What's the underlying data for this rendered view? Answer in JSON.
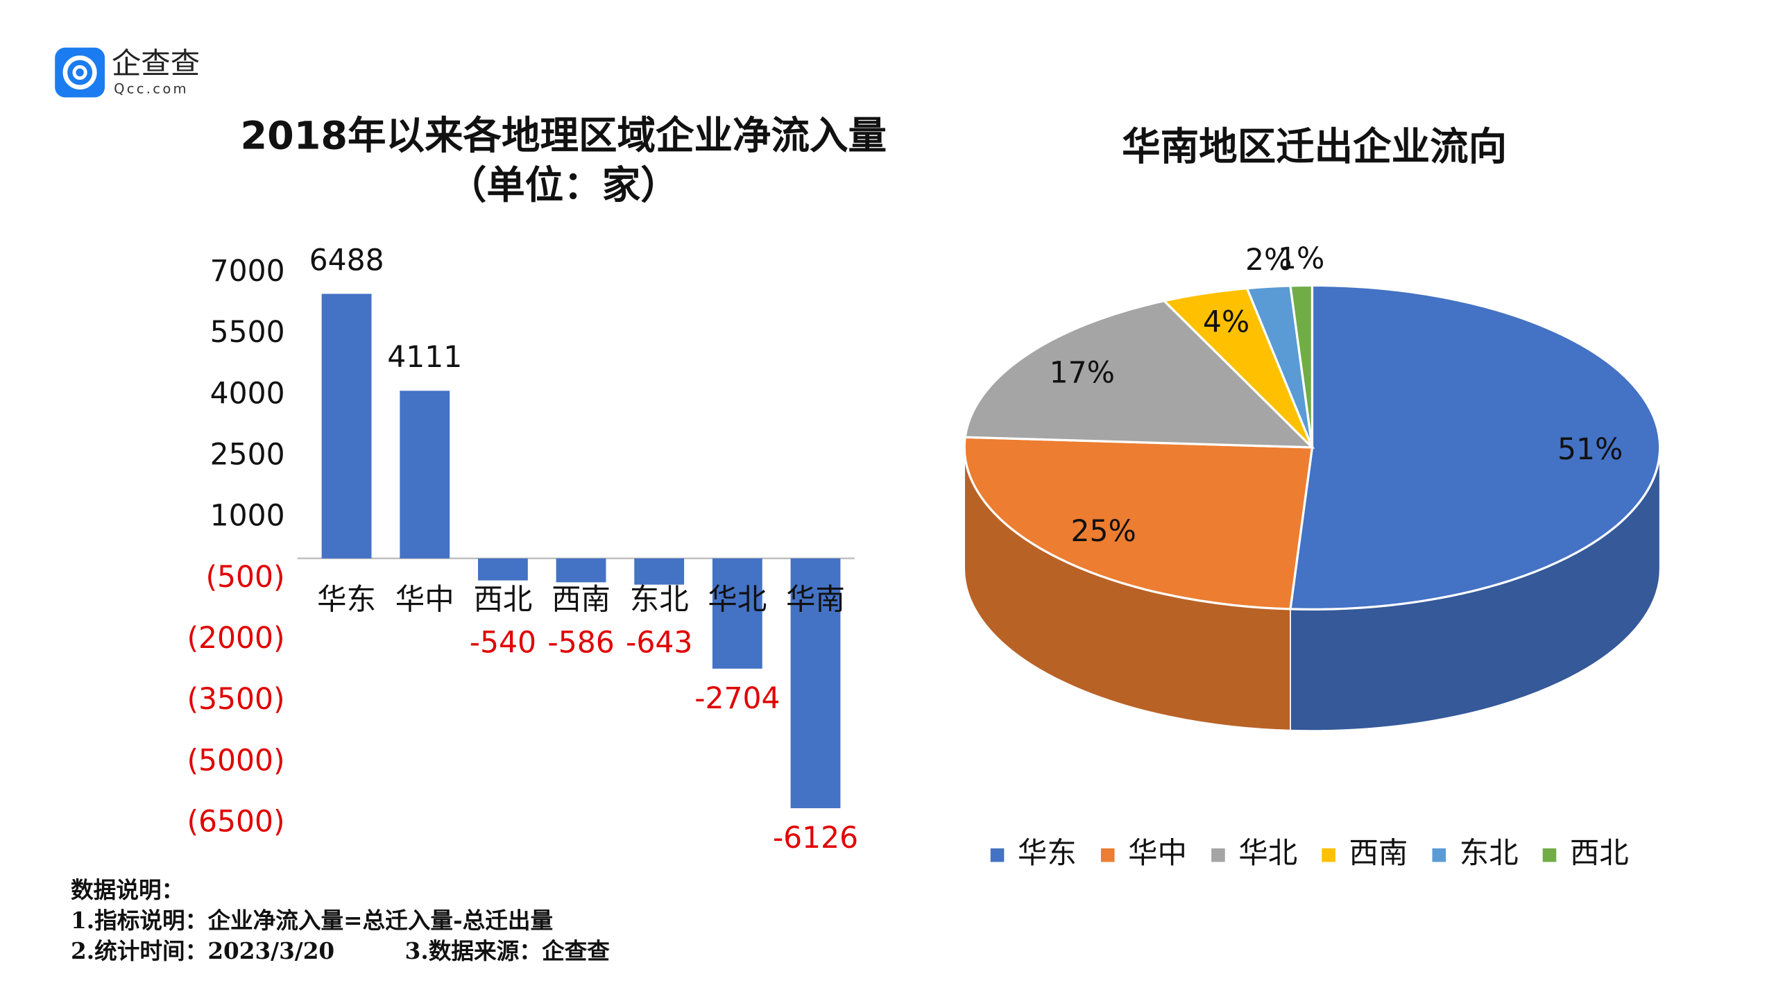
{
  "logo": {
    "name": "企查查",
    "domain": "Qcc.com"
  },
  "chart_data": [
    {
      "type": "bar",
      "title": "2018年以来各地理区域企业净流入量",
      "subtitle": "（单位：家）",
      "categories": [
        "华东",
        "华中",
        "西北",
        "西南",
        "东北",
        "华北",
        "华南"
      ],
      "values": [
        6488,
        4111,
        -540,
        -586,
        -643,
        -2704,
        -6126
      ],
      "color": "#4472c4",
      "negative_label_color": "#e00000",
      "ylim": [
        -6500,
        7000
      ],
      "yticks": [
        7000,
        5500,
        4000,
        2500,
        1000,
        {
          "value": -500,
          "label": "(500)"
        },
        {
          "value": -2000,
          "label": "(2000)"
        },
        {
          "value": -3500,
          "label": "(3500)"
        },
        {
          "value": -5000,
          "label": "(5000)"
        },
        {
          "value": -6500,
          "label": "(6500)"
        }
      ],
      "grid": false
    },
    {
      "type": "pie",
      "title": "华南地区迁出企业流向",
      "categories": [
        "华东",
        "华中",
        "华北",
        "西南",
        "东北",
        "西北"
      ],
      "values": [
        51,
        25,
        17,
        4,
        2,
        1
      ],
      "value_labels": [
        "51%",
        "25%",
        "17%",
        "4%",
        "2%",
        "1%"
      ],
      "colors": [
        "#4472c4",
        "#ed7d31",
        "#a5a5a5",
        "#ffc000",
        "#5b9bd5",
        "#70ad47"
      ],
      "legend": "bottom"
    }
  ],
  "notes": [
    "数据说明：",
    "1.指标说明：企业净流入量=总迁入量-总迁出量",
    "2.统计时间：2023/3/20",
    "3.数据来源：企查查"
  ]
}
